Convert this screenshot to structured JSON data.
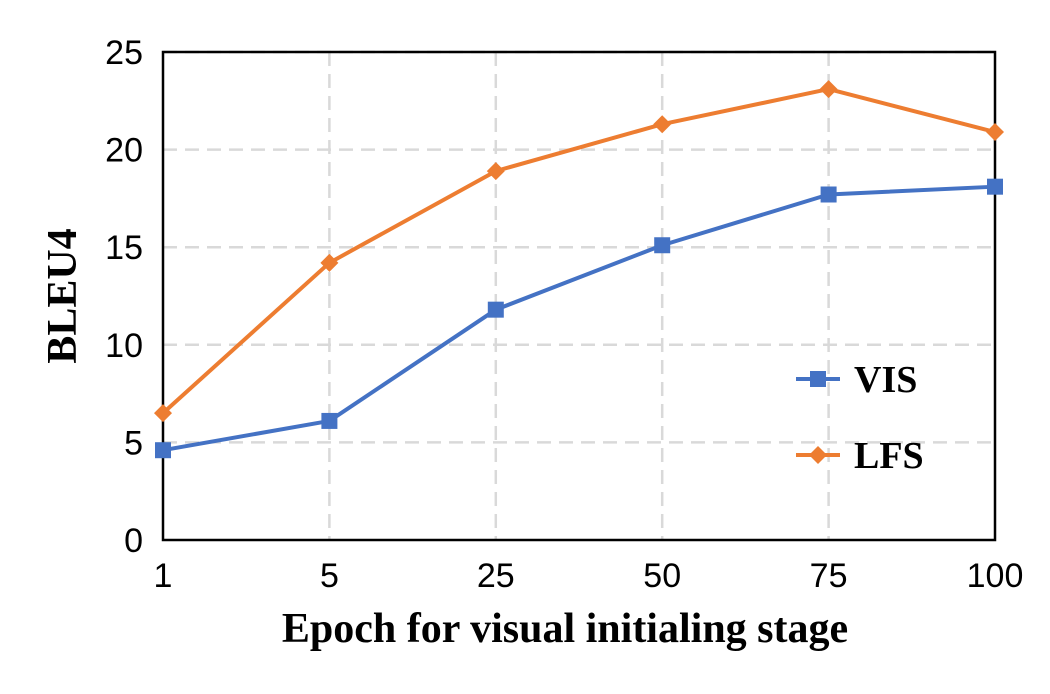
{
  "chart_data": {
    "type": "line",
    "categories": [
      "1",
      "5",
      "25",
      "50",
      "75",
      "100"
    ],
    "series": [
      {
        "name": "VIS",
        "values": [
          4.6,
          6.1,
          11.8,
          15.1,
          17.7,
          18.1
        ],
        "color": "#4472c4",
        "marker": "square"
      },
      {
        "name": "LFS",
        "values": [
          6.5,
          14.2,
          18.9,
          21.3,
          23.1,
          20.9
        ],
        "color": "#ed7d31",
        "marker": "diamond"
      }
    ],
    "xlabel": "Epoch for visual initialing stage",
    "ylabel": "BLEU4",
    "ylim": [
      0,
      25
    ],
    "yticks": [
      "0",
      "5",
      "10",
      "15",
      "20",
      "25"
    ],
    "grid": true,
    "legend_position": "right"
  }
}
